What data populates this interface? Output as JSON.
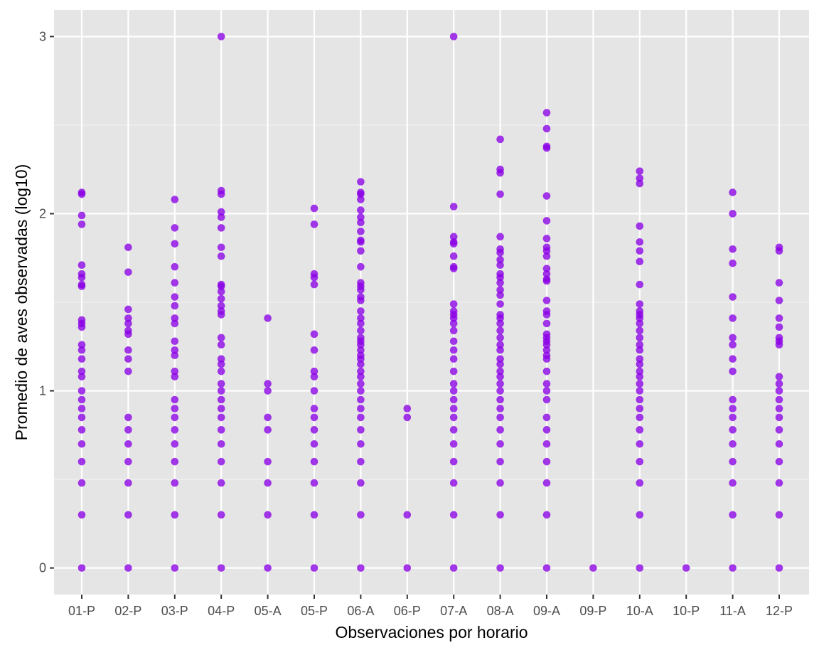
{
  "chart_data": {
    "type": "scatter",
    "title": "",
    "xlabel": "Observaciones por horario",
    "ylabel": "Promedio de aves observadas (log10)",
    "categories": [
      "01-P",
      "02-P",
      "03-P",
      "04-P",
      "05-A",
      "05-P",
      "06-A",
      "06-P",
      "07-A",
      "08-A",
      "09-A",
      "09-P",
      "10-A",
      "10-P",
      "11-A",
      "12-P"
    ],
    "ylim": [
      -0.15,
      3.15
    ],
    "yticks": [
      0,
      1,
      2,
      3
    ],
    "ytick_labels": [
      "0",
      "1",
      "2",
      "3"
    ],
    "grid": true,
    "legend": "none",
    "point_color": "#8A00E6",
    "panel_background": "#E5E5E5",
    "points": {
      "01-P": [
        0,
        0.3,
        0.48,
        0.6,
        0.7,
        0.78,
        0.85,
        0.9,
        0.95,
        1.0,
        1.08,
        1.11,
        1.18,
        1.23,
        1.26,
        1.36,
        1.38,
        1.4,
        1.59,
        1.6,
        1.64,
        1.66,
        1.71,
        1.94,
        1.99,
        2.11,
        2.12
      ],
      "02-P": [
        0,
        0.3,
        0.48,
        0.6,
        0.7,
        0.78,
        0.85,
        1.11,
        1.18,
        1.23,
        1.32,
        1.34,
        1.38,
        1.41,
        1.46,
        1.67,
        1.81
      ],
      "03-P": [
        0,
        0.3,
        0.48,
        0.6,
        0.7,
        0.78,
        0.85,
        0.9,
        0.95,
        1.08,
        1.11,
        1.2,
        1.23,
        1.28,
        1.38,
        1.41,
        1.48,
        1.53,
        1.61,
        1.7,
        1.83,
        1.92,
        2.08
      ],
      "04-P": [
        0,
        0.3,
        0.48,
        0.6,
        0.7,
        0.78,
        0.85,
        0.9,
        0.95,
        1.0,
        1.04,
        1.11,
        1.15,
        1.18,
        1.26,
        1.3,
        1.43,
        1.45,
        1.48,
        1.52,
        1.56,
        1.59,
        1.6,
        1.76,
        1.81,
        1.92,
        1.98,
        2.01,
        2.11,
        2.13,
        3.0
      ],
      "05-A": [
        0,
        0.3,
        0.48,
        0.6,
        0.78,
        0.85,
        1.0,
        1.04,
        1.41
      ],
      "05-P": [
        0,
        0.3,
        0.48,
        0.6,
        0.7,
        0.78,
        0.85,
        0.9,
        1.0,
        1.08,
        1.11,
        1.23,
        1.32,
        1.6,
        1.64,
        1.66,
        1.94,
        2.03
      ],
      "06-A": [
        0,
        0.3,
        0.48,
        0.6,
        0.7,
        0.78,
        0.85,
        0.9,
        0.95,
        1.0,
        1.04,
        1.08,
        1.11,
        1.15,
        1.18,
        1.2,
        1.23,
        1.26,
        1.28,
        1.3,
        1.34,
        1.38,
        1.41,
        1.45,
        1.51,
        1.53,
        1.57,
        1.59,
        1.61,
        1.7,
        1.79,
        1.84,
        1.85,
        1.9,
        1.95,
        1.98,
        2.02,
        2.08,
        2.11,
        2.12,
        2.18
      ],
      "06-P": [
        0,
        0.3,
        0.85,
        0.9
      ],
      "07-A": [
        0,
        0.3,
        0.48,
        0.6,
        0.7,
        0.78,
        0.85,
        0.9,
        0.95,
        1.0,
        1.04,
        1.11,
        1.18,
        1.23,
        1.28,
        1.34,
        1.38,
        1.41,
        1.43,
        1.45,
        1.49,
        1.69,
        1.7,
        1.76,
        1.83,
        1.84,
        1.87,
        2.04,
        3.0
      ],
      "08-A": [
        0,
        0.3,
        0.48,
        0.6,
        0.7,
        0.78,
        0.85,
        0.9,
        0.95,
        1.0,
        1.04,
        1.08,
        1.11,
        1.15,
        1.18,
        1.23,
        1.26,
        1.3,
        1.34,
        1.38,
        1.41,
        1.43,
        1.49,
        1.54,
        1.57,
        1.61,
        1.64,
        1.66,
        1.71,
        1.74,
        1.78,
        1.8,
        1.87,
        2.11,
        2.23,
        2.25,
        2.42
      ],
      "09-A": [
        0,
        0.3,
        0.48,
        0.6,
        0.7,
        0.78,
        0.85,
        0.95,
        1.0,
        1.04,
        1.11,
        1.18,
        1.2,
        1.23,
        1.26,
        1.28,
        1.3,
        1.32,
        1.38,
        1.43,
        1.45,
        1.51,
        1.62,
        1.63,
        1.66,
        1.69,
        1.76,
        1.79,
        1.81,
        1.86,
        1.96,
        2.1,
        2.37,
        2.38,
        2.48,
        2.57
      ],
      "09-P": [
        0
      ],
      "10-A": [
        0,
        0.3,
        0.48,
        0.6,
        0.7,
        0.78,
        0.85,
        0.9,
        0.95,
        1.0,
        1.04,
        1.08,
        1.11,
        1.15,
        1.18,
        1.23,
        1.26,
        1.3,
        1.34,
        1.38,
        1.41,
        1.43,
        1.45,
        1.49,
        1.6,
        1.73,
        1.79,
        1.84,
        1.93,
        2.17,
        2.2,
        2.24
      ],
      "10-P": [
        0
      ],
      "11-A": [
        0,
        0.3,
        0.48,
        0.6,
        0.7,
        0.78,
        0.85,
        0.9,
        0.95,
        1.11,
        1.18,
        1.26,
        1.3,
        1.41,
        1.53,
        1.72,
        1.8,
        2.0,
        2.12
      ],
      "12-P": [
        0,
        0.3,
        0.48,
        0.6,
        0.7,
        0.78,
        0.85,
        0.9,
        0.95,
        1.0,
        1.04,
        1.08,
        1.26,
        1.28,
        1.3,
        1.36,
        1.41,
        1.51,
        1.61,
        1.79,
        1.81
      ]
    }
  }
}
